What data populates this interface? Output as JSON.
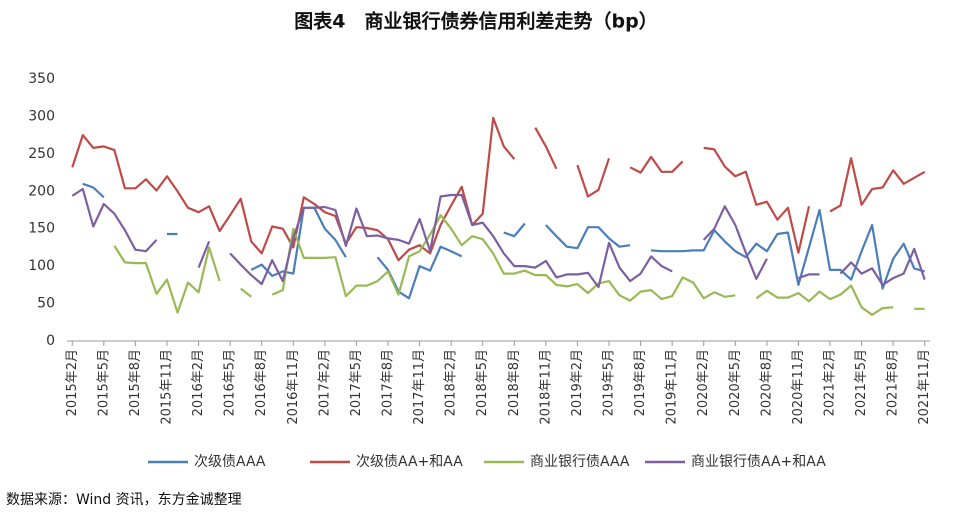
{
  "chart_data": {
    "type": "line",
    "title": "图表4　商业银行债券信用利差走势（bp）",
    "source": "数据来源：Wind 资讯，东方金诚整理",
    "categories": [
      "2015年2月",
      null,
      null,
      "2015年5月",
      null,
      null,
      "2015年8月",
      null,
      null,
      "2015年11月",
      null,
      null,
      "2016年2月",
      null,
      null,
      "2016年5月",
      null,
      null,
      "2016年8月",
      null,
      null,
      "2016年11月",
      null,
      null,
      "2017年2月",
      null,
      null,
      "2017年5月",
      null,
      null,
      "2017年8月",
      null,
      null,
      "2017年11月",
      null,
      null,
      "2018年2月",
      null,
      null,
      "2018年5月",
      null,
      null,
      "2018年8月",
      null,
      null,
      "2018年11月",
      null,
      null,
      "2019年2月",
      null,
      null,
      "2019年5月",
      null,
      null,
      "2019年8月",
      null,
      null,
      "2019年11月",
      null,
      null,
      "2020年2月",
      null,
      null,
      "2020年5月",
      null,
      null,
      "2020年8月",
      null,
      null,
      "2020年11月",
      null,
      null,
      "2021年2月",
      null,
      null,
      "2021年5月",
      null,
      null,
      "2021年8月",
      null,
      null,
      "2021年11月"
    ],
    "series": [
      {
        "name": "次级债AAA",
        "color": "#4a7ebb",
        "values": [
          null,
          210,
          205,
          192,
          null,
          null,
          null,
          null,
          null,
          143,
          143,
          null,
          null,
          null,
          null,
          null,
          null,
          95,
          102,
          87,
          93,
          90,
          178,
          178,
          150,
          135,
          112,
          null,
          null,
          112,
          95,
          66,
          57,
          100,
          94,
          126,
          120,
          113,
          null,
          null,
          null,
          145,
          140,
          157,
          null,
          155,
          140,
          126,
          124,
          152,
          152,
          137,
          126,
          128,
          null,
          121,
          120,
          120,
          120,
          121,
          121,
          148,
          133,
          120,
          112,
          130,
          120,
          143,
          145,
          75,
          125,
          175,
          95,
          95,
          82,
          120,
          155,
          70,
          110,
          130,
          97,
          93
        ]
      },
      {
        "name": "次级债AA+和AA",
        "color": "#be4b48",
        "values": [
          232,
          275,
          258,
          260,
          255,
          204,
          204,
          216,
          201,
          220,
          200,
          178,
          172,
          180,
          147,
          168,
          190,
          133,
          117,
          153,
          150,
          125,
          192,
          183,
          172,
          167,
          130,
          152,
          151,
          148,
          136,
          108,
          122,
          128,
          117,
          155,
          181,
          206,
          155,
          170,
          298,
          260,
          243,
          null,
          285,
          260,
          230,
          null,
          235,
          193,
          202,
          244,
          null,
          232,
          225,
          246,
          226,
          226,
          240,
          null,
          258,
          256,
          233,
          220,
          226,
          182,
          186,
          162,
          178,
          118,
          180,
          null,
          173,
          181,
          244,
          182,
          203,
          205,
          228,
          210,
          218,
          226
        ]
      },
      {
        "name": "商业银行债AAA",
        "color": "#98b954",
        "values": [
          null,
          null,
          null,
          null,
          127,
          105,
          104,
          104,
          63,
          82,
          38,
          78,
          65,
          125,
          80,
          null,
          70,
          59,
          null,
          62,
          68,
          150,
          111,
          111,
          111,
          112,
          60,
          74,
          74,
          80,
          93,
          62,
          113,
          120,
          142,
          168,
          150,
          128,
          140,
          136,
          117,
          90,
          90,
          94,
          88,
          88,
          75,
          73,
          76,
          64,
          77,
          80,
          61,
          54,
          66,
          68,
          56,
          60,
          85,
          78,
          57,
          65,
          59,
          61,
          null,
          57,
          67,
          58,
          58,
          64,
          53,
          66,
          56,
          62,
          74,
          45,
          35,
          44,
          45,
          null,
          43,
          43
        ]
      },
      {
        "name": "商业银行债AA+和AA",
        "color": "#7d5fa0",
        "values": [
          194,
          203,
          153,
          183,
          170,
          148,
          122,
          120,
          135,
          null,
          null,
          null,
          98,
          133,
          null,
          117,
          102,
          88,
          76,
          108,
          80,
          138,
          178,
          178,
          179,
          175,
          127,
          177,
          140,
          141,
          137,
          135,
          130,
          163,
          120,
          193,
          195,
          195,
          155,
          158,
          140,
          117,
          100,
          100,
          98,
          107,
          85,
          89,
          89,
          91,
          72,
          131,
          98,
          80,
          90,
          113,
          100,
          93,
          null,
          null,
          135,
          150,
          180,
          155,
          118,
          83,
          110,
          null,
          null,
          84,
          89,
          89,
          null,
          90,
          105,
          90,
          97,
          75,
          84,
          90,
          123,
          82
        ]
      }
    ],
    "ylim": [
      0,
      350
    ],
    "yticks": [
      0,
      50,
      100,
      150,
      200,
      250,
      300,
      350
    ]
  }
}
